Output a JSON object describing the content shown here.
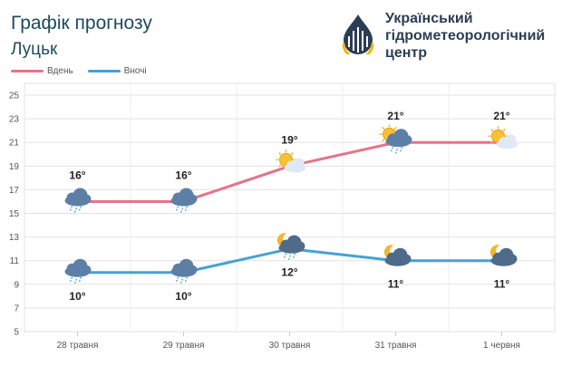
{
  "header": {
    "title": "Графік прогнозу",
    "city": "Луцьк"
  },
  "organization": {
    "line1": "Український",
    "line2": "гідрометеорологічний",
    "line3": "центр",
    "logo_icon": "ukrhydromet-logo-icon",
    "colors": {
      "dark": "#2a3d54",
      "accent": "#f2b705"
    }
  },
  "chart_data": {
    "type": "line",
    "categories": [
      "28 травня",
      "29 травня",
      "30 травня",
      "31 травня",
      "1 червня"
    ],
    "series": [
      {
        "name": "Вдень",
        "color": "#e5738a",
        "values": [
          16,
          16,
          19,
          21,
          21
        ],
        "labels": [
          "16°",
          "16°",
          "19°",
          "21°",
          "21°"
        ],
        "icons": [
          "rain-cloud-icon",
          "rain-cloud-icon",
          "sun-cloud-icon",
          "sun-rain-cloud-icon",
          "sun-cloud-icon"
        ]
      },
      {
        "name": "Вночі",
        "color": "#45a1d6",
        "values": [
          10,
          10,
          12,
          11,
          11
        ],
        "labels": [
          "10°",
          "10°",
          "12°",
          "11°",
          "11°"
        ],
        "icons": [
          "rain-cloud-icon",
          "rain-cloud-icon",
          "moon-rain-cloud-icon",
          "moon-cloud-icon",
          "moon-cloud-icon"
        ]
      }
    ],
    "ylim": [
      5,
      26
    ],
    "yticks": [
      "5",
      "7",
      "9",
      "11",
      "13",
      "15",
      "17",
      "19",
      "21",
      "23",
      "25"
    ],
    "grid": true,
    "legend": "top-left"
  }
}
